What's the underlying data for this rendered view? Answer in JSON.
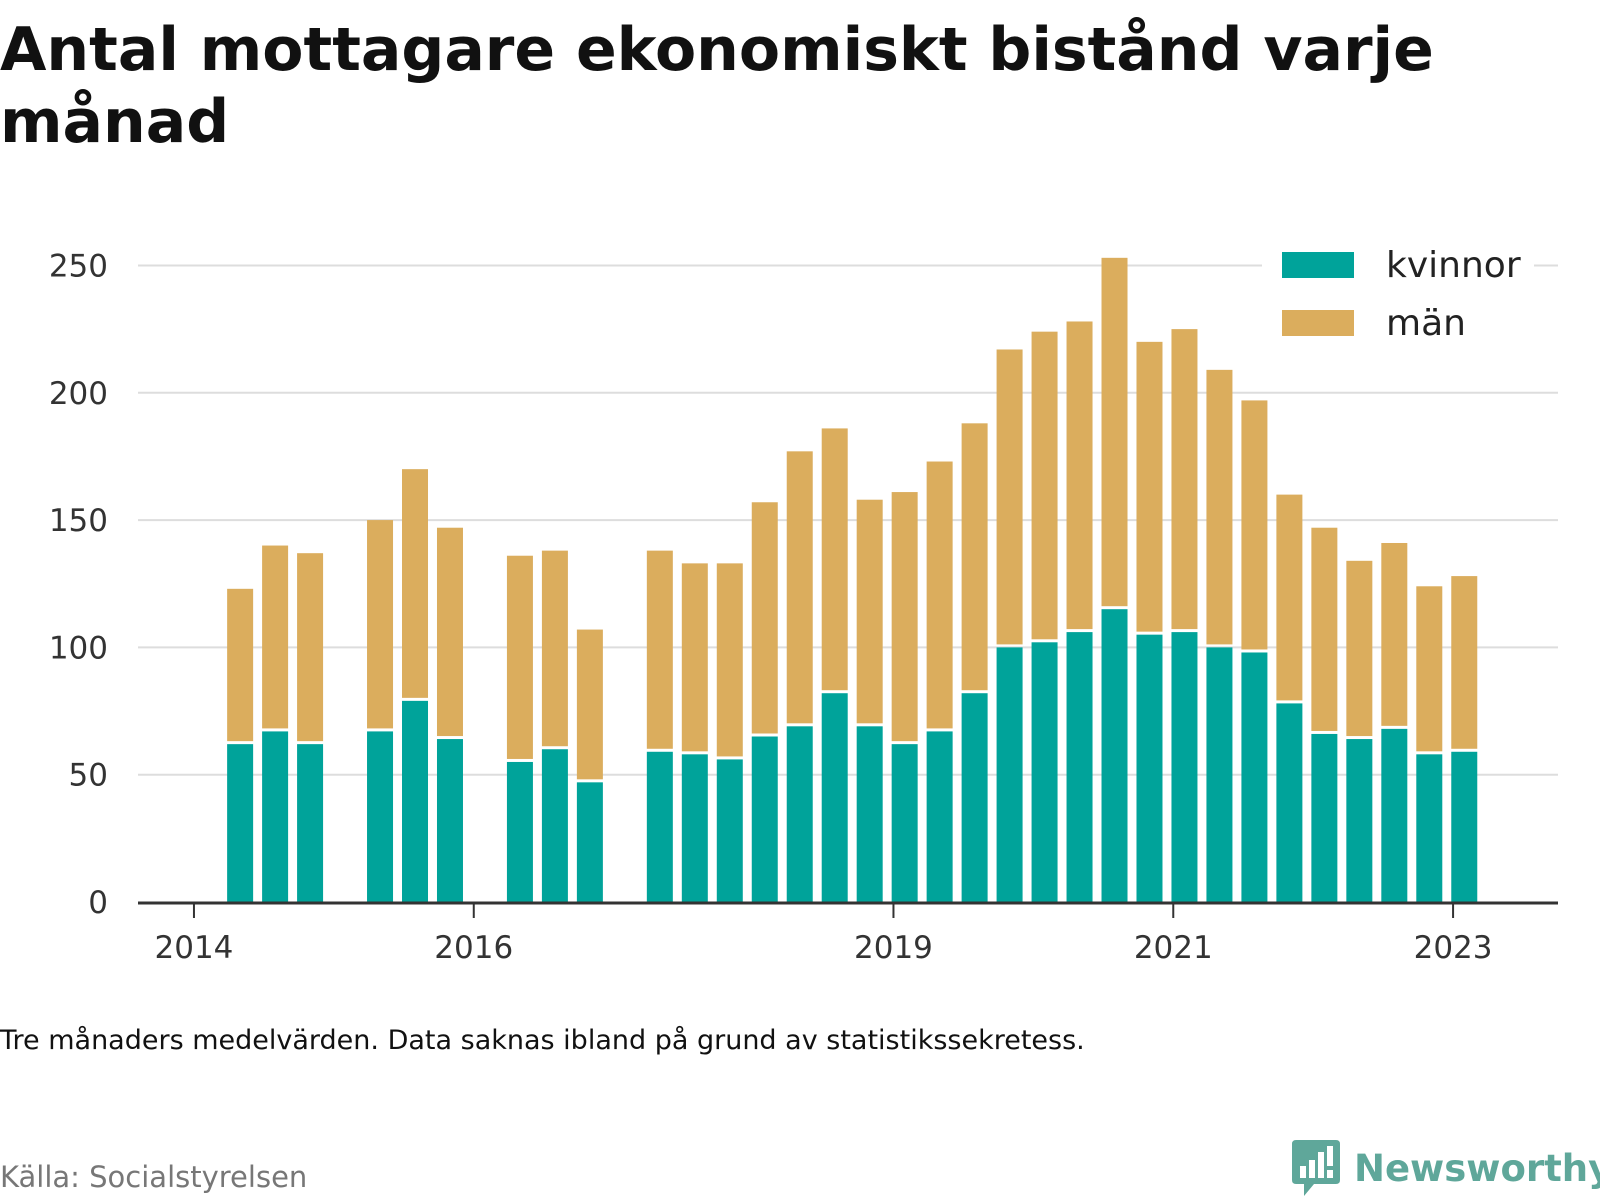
{
  "title": "Antal mottagare ekonomiskt bistånd varje månad",
  "note": "Tre månaders medelvärden. Data saknas ibland på grund av statistikssekretess.",
  "source": "Källa: Socialstyrelsen",
  "brand": {
    "name": "Newsworthy",
    "icon": "newsworthy-logo-icon",
    "color": "#5fa79a"
  },
  "chart_data": {
    "type": "bar",
    "stacked": true,
    "x_unit": "year",
    "xlim": [
      2013.6,
      2023.75
    ],
    "ylim": [
      0,
      260
    ],
    "yticks": [
      0,
      50,
      100,
      150,
      200,
      250
    ],
    "xticks": [
      2014,
      2016,
      2019,
      2021,
      2023
    ],
    "grid": true,
    "legend_position": "top-right",
    "x": [
      2014.33,
      2014.58,
      2014.83,
      2015.33,
      2015.58,
      2015.83,
      2016.33,
      2016.58,
      2016.83,
      2017.33,
      2017.58,
      2017.83,
      2018.08,
      2018.33,
      2018.58,
      2018.83,
      2019.08,
      2019.33,
      2019.58,
      2019.83,
      2020.08,
      2020.33,
      2020.58,
      2020.83,
      2021.08,
      2021.33,
      2021.58,
      2021.83,
      2022.08,
      2022.33,
      2022.58,
      2022.83,
      2023.08
    ],
    "series": [
      {
        "name": "kvinnor",
        "color": "#00a39a",
        "values": [
          62,
          67,
          62,
          67,
          79,
          64,
          55,
          60,
          47,
          59,
          58,
          56,
          65,
          69,
          82,
          69,
          62,
          67,
          82,
          100,
          102,
          106,
          115,
          105,
          106,
          100,
          98,
          78,
          66,
          64,
          68,
          58,
          59
        ]
      },
      {
        "name": "män",
        "color": "#dbad5d",
        "values": [
          61,
          73,
          75,
          83,
          91,
          83,
          81,
          78,
          60,
          79,
          75,
          77,
          92,
          108,
          104,
          89,
          99,
          106,
          106,
          117,
          122,
          122,
          138,
          115,
          119,
          109,
          99,
          82,
          81,
          70,
          73,
          66,
          69
        ]
      }
    ]
  }
}
